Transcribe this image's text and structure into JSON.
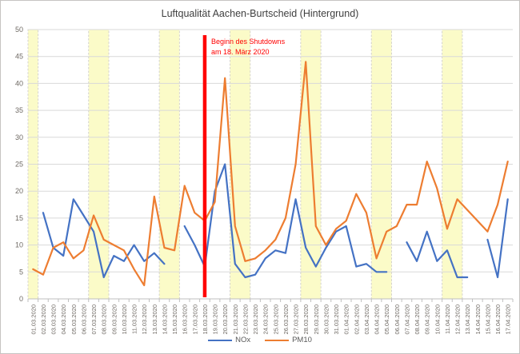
{
  "chart_data": {
    "type": "line",
    "title": "Luftqualität Aachen-Burtscheid (Hintergrund)",
    "categories": [
      "01.03.2020",
      "02.03.2020",
      "03.03.2020",
      "04.03.2020",
      "05.03.2020",
      "06.03.2020",
      "07.03.2020",
      "08.03.2020",
      "09.03.2020",
      "10.03.2020",
      "11.03.2020",
      "12.03.2020",
      "13.03.2020",
      "14.03.2020",
      "15.03.2020",
      "16.03.2020",
      "17.03.2020",
      "18.03.2020",
      "19.03.2020",
      "20.03.2020",
      "21.03.2020",
      "22.03.2020",
      "23.03.2020",
      "24.03.2020",
      "25.03.2020",
      "26.03.2020",
      "27.03.2020",
      "28.03.2020",
      "29.03.2020",
      "30.03.2020",
      "31.03.2020",
      "01.04.2020",
      "02.04.2020",
      "03.04.2020",
      "04.04.2020",
      "05.04.2020",
      "06.04.2020",
      "07.04.2020",
      "08.04.2020",
      "09.04.2020",
      "10.04.2020",
      "11.04.2020",
      "12.04.2020",
      "13.04.2020",
      "14.04.2020",
      "15.04.2020",
      "16.04.2020",
      "17.04.2020"
    ],
    "series": [
      {
        "name": "NOx",
        "color": "#4472C4",
        "values": [
          null,
          16,
          9.5,
          8,
          18.5,
          15.5,
          12.5,
          4,
          8,
          7,
          10,
          7,
          8.5,
          6.5,
          null,
          13.5,
          10,
          6,
          20,
          25,
          6.5,
          4,
          4.5,
          7.5,
          9,
          8.5,
          18.5,
          9.5,
          6,
          9.5,
          12.5,
          13.5,
          6,
          6.5,
          5,
          5,
          null,
          10.5,
          7,
          12.5,
          7,
          9,
          4,
          4,
          null,
          11,
          4,
          18.5
        ]
      },
      {
        "name": "PM10",
        "color": "#ED7D31",
        "values": [
          5.5,
          4.5,
          9.5,
          10.5,
          7.5,
          9,
          15.5,
          11,
          10,
          9,
          5.5,
          2.5,
          19,
          9.5,
          9,
          21,
          16,
          14.5,
          18,
          41,
          13.5,
          7,
          7.5,
          9,
          11,
          15,
          25,
          44,
          13.5,
          10,
          13,
          14.5,
          19.5,
          16,
          7.5,
          12.5,
          13.5,
          17.5,
          17.5,
          25.5,
          20.5,
          13,
          18.5,
          16.5,
          14.5,
          12.5,
          17.5,
          25.5
        ]
      }
    ],
    "ylim": [
      0,
      50
    ],
    "ytick_step": 5,
    "grid_on": true,
    "grid_color": "#D9D9D9",
    "axis_line_color": "#BFBFBF",
    "axis_label_color": "#6F6A64",
    "weekend_band_color": "#FBFBC8",
    "weekend_band_border_color": "#D4D2CE",
    "weekend_bands": [
      [
        0,
        0
      ],
      [
        6,
        7
      ],
      [
        13,
        14
      ],
      [
        20,
        21
      ],
      [
        27,
        28
      ],
      [
        34,
        35
      ],
      [
        41,
        42
      ]
    ],
    "annotation": {
      "line1": "Beginn des Shutdowns",
      "line2": "am 18. März 2020",
      "color": "#FF0000",
      "category_index": 17
    },
    "legend": {
      "items": [
        "NOx",
        "PM10"
      ],
      "position": "bottom"
    },
    "title_color": "#3F3F3F"
  }
}
